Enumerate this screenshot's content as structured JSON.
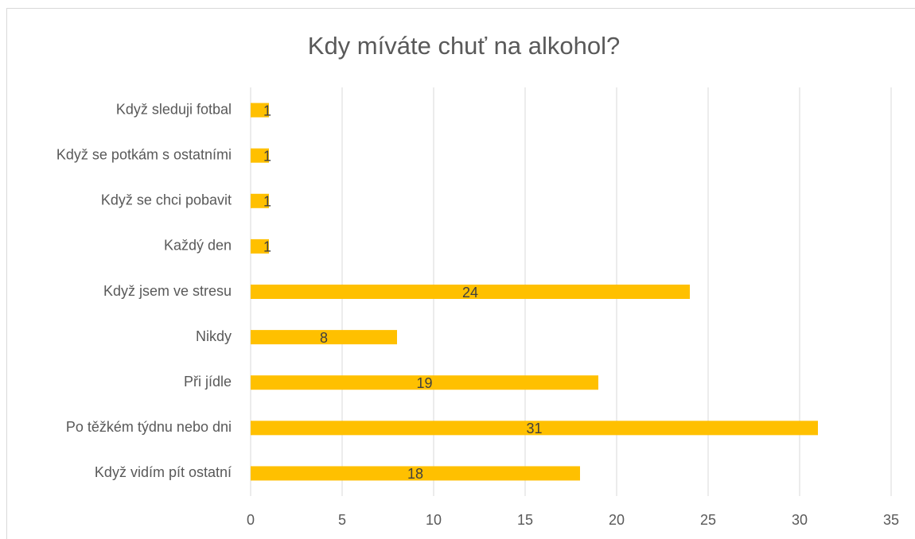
{
  "chart_data": {
    "type": "bar",
    "orientation": "horizontal",
    "title": "Kdy míváte chuť na alkohol?",
    "categories": [
      "Když sleduji fotbal",
      "Když se potkám s ostatními",
      "Když se chci pobavit",
      "Každý den",
      "Když jsem ve stresu",
      "Nikdy",
      "Při jídle",
      "Po těžkém týdnu nebo dni",
      "Když vidím pít ostatní"
    ],
    "values": [
      1,
      1,
      1,
      1,
      24,
      8,
      19,
      31,
      18
    ],
    "color": "#ffc000",
    "xlim": [
      0,
      35
    ],
    "xticks": [
      0,
      5,
      10,
      15,
      20,
      25,
      30,
      35
    ],
    "grid": true
  }
}
